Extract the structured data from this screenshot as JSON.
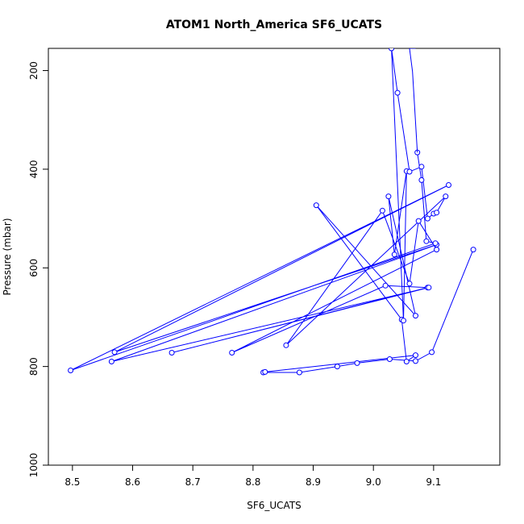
{
  "chart_data": {
    "type": "line",
    "title": "ATOM1 North_America SF6_UCATS",
    "xlabel": "SF6_UCATS",
    "ylabel": "Pressure (mbar)",
    "xlim": [
      8.46,
      9.21
    ],
    "ylim": [
      1000,
      155
    ],
    "y_reversed": true,
    "grid": false,
    "xticks": [
      8.5,
      8.6,
      8.7,
      8.8,
      8.9,
      9.0,
      9.1
    ],
    "xtick_labels": [
      "8.5",
      "8.6",
      "8.7",
      "8.8",
      "8.9",
      "9.0",
      "9.1"
    ],
    "yticks": [
      200,
      400,
      600,
      800,
      1000
    ],
    "ytick_labels": [
      "200",
      "400",
      "600",
      "800",
      "1000"
    ],
    "series": [
      {
        "color": "#0000ff",
        "marker": "open-circle",
        "x": [
          9.166,
          9.097,
          9.07,
          9.027,
          8.973,
          8.94,
          8.877,
          8.817,
          8.82,
          9.07,
          9.055,
          9.047,
          8.905,
          9.07,
          9.025,
          9.035,
          9.055,
          9.05,
          9.03,
          9.04,
          9.06,
          9.08,
          9.09,
          9.1,
          9.105,
          9.12,
          8.855,
          9.015,
          9.06,
          9.075,
          9.105,
          8.765,
          9.02,
          9.09,
          8.665,
          9.092,
          8.565,
          9.105,
          8.57,
          9.125,
          8.497,
          9.103,
          9.088,
          9.08,
          9.073
        ],
        "y": [
          563,
          771,
          789,
          785,
          793,
          800,
          812,
          812,
          811,
          777,
          790,
          705,
          473,
          697,
          455,
          573,
          404,
          707,
          155,
          245,
          405,
          395,
          500,
          490,
          488,
          455,
          757,
          484,
          632,
          505,
          563,
          772,
          636,
          640,
          772,
          640,
          790,
          553,
          771,
          432,
          808,
          550,
          546,
          422,
          366
        ]
      },
      {
        "color": "#0000ff",
        "marker": "none",
        "x": [
          9.073,
          9.065,
          9.06,
          9.07
        ],
        "y": [
          366,
          202,
          155,
          155
        ]
      }
    ]
  }
}
